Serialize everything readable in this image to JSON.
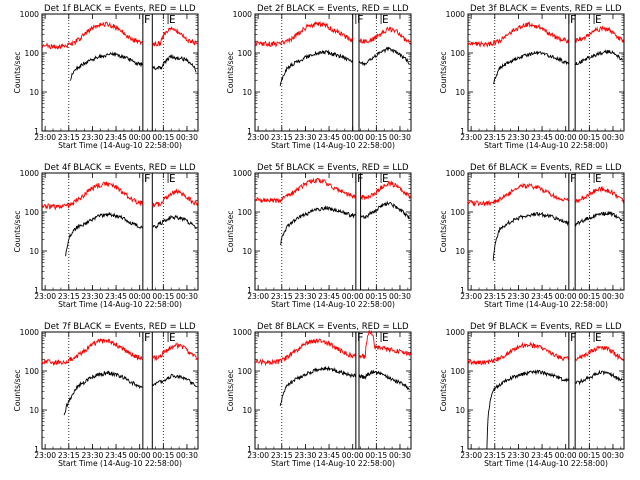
{
  "figure": {
    "subplot_title_template": "Det {det}f BLACK = Events, RED = LLD",
    "xlabel": "Start Time (14-Aug-10 22:58:00)",
    "ylabel": "Counts/sec",
    "x_tick_labels": [
      "23:00",
      "23:15",
      "23:30",
      "23:45",
      "00:00",
      "00:15",
      "00:30"
    ],
    "y_tick_labels": [
      "1",
      "10",
      "100",
      "1000"
    ],
    "series_names": [
      "Events",
      "LLD"
    ],
    "colors": {
      "events": "#000000",
      "lld": "#ff0000",
      "axes": "#000000",
      "background": "#ffffff"
    },
    "flag_labels": {
      "f": "F",
      "e": "E"
    }
  },
  "chart_data": [
    {
      "type": "line",
      "det": 1,
      "title": "Det 1f BLACK = Events, RED = LLD",
      "xlabel": "Start Time (14-Aug-10 22:58:00)",
      "ylabel": "Counts/sec",
      "xlim_min": [
        0,
        99
      ],
      "ylim": [
        1,
        1000
      ],
      "yscale": "log",
      "events_x_min": [
        18,
        20,
        25,
        30,
        38,
        45,
        52,
        60,
        68,
        76,
        78,
        82,
        90,
        95,
        98
      ],
      "events": [
        18,
        35,
        48,
        62,
        85,
        95,
        78,
        55,
        42,
        42,
        60,
        80,
        70,
        55,
        30
      ],
      "lld_x_min": [
        0,
        5,
        10,
        15,
        20,
        25,
        30,
        35,
        40,
        45,
        50,
        55,
        60,
        65,
        70,
        75,
        78,
        83,
        88,
        93,
        99
      ],
      "lld": [
        160,
        150,
        145,
        150,
        180,
        250,
        380,
        520,
        560,
        500,
        380,
        260,
        200,
        180,
        170,
        180,
        320,
        430,
        330,
        210,
        175
      ],
      "gaps_min": [
        [
          64,
          70
        ]
      ],
      "flags": [
        {
          "label": "F",
          "x_min": 64
        },
        {
          "label": "E",
          "x_min": 80
        }
      ]
    },
    {
      "type": "line",
      "det": 2,
      "title": "Det 2f BLACK = Events, RED = LLD",
      "xlabel": "Start Time (14-Aug-10 22:58:00)",
      "ylabel": "Counts/sec",
      "xlim_min": [
        0,
        99
      ],
      "ylim": [
        1,
        1000
      ],
      "yscale": "log",
      "events_x_min": [
        16,
        20,
        25,
        30,
        38,
        45,
        52,
        60,
        70,
        75,
        80,
        85,
        90,
        98
      ],
      "events": [
        15,
        38,
        55,
        70,
        95,
        105,
        88,
        65,
        52,
        75,
        110,
        130,
        105,
        55
      ],
      "lld_x_min": [
        0,
        5,
        10,
        15,
        20,
        25,
        30,
        35,
        40,
        45,
        50,
        55,
        60,
        65,
        70,
        75,
        80,
        85,
        90,
        95,
        99
      ],
      "lld": [
        180,
        175,
        170,
        175,
        200,
        260,
        380,
        520,
        560,
        520,
        380,
        300,
        230,
        210,
        200,
        230,
        320,
        420,
        350,
        220,
        190
      ],
      "gaps_min": [
        [
          62,
          66
        ]
      ],
      "flags": [
        {
          "label": "F",
          "x_min": 64
        },
        {
          "label": "E",
          "x_min": 80
        }
      ]
    },
    {
      "type": "line",
      "det": 3,
      "title": "Det 3f BLACK = Events, RED = LLD",
      "xlabel": "Start Time (14-Aug-10 22:58:00)",
      "ylabel": "Counts/sec",
      "xlim_min": [
        0,
        99
      ],
      "ylim": [
        1,
        1000
      ],
      "yscale": "log",
      "events_x_min": [
        16,
        20,
        25,
        30,
        38,
        45,
        52,
        60,
        66,
        70,
        75,
        80,
        85,
        90,
        98
      ],
      "events": [
        15,
        40,
        55,
        70,
        90,
        100,
        85,
        62,
        50,
        55,
        70,
        85,
        100,
        110,
        65
      ],
      "lld_x_min": [
        0,
        5,
        10,
        15,
        20,
        25,
        30,
        35,
        40,
        45,
        50,
        55,
        60,
        65,
        70,
        75,
        80,
        85,
        90,
        95,
        99
      ],
      "lld": [
        180,
        175,
        170,
        175,
        210,
        280,
        400,
        520,
        540,
        480,
        350,
        260,
        220,
        200,
        210,
        260,
        360,
        430,
        380,
        260,
        190
      ],
      "gaps_min": [
        [
          64,
          68
        ]
      ],
      "flags": [
        {
          "label": "F",
          "x_min": 64
        },
        {
          "label": "E",
          "x_min": 80
        }
      ]
    },
    {
      "type": "line",
      "det": 4,
      "title": "Det 4f BLACK = Events, RED = LLD",
      "xlabel": "Start Time (14-Aug-10 22:58:00)",
      "ylabel": "Counts/sec",
      "xlim_min": [
        0,
        99
      ],
      "ylim": [
        1,
        1000
      ],
      "yscale": "log",
      "events_x_min": [
        15,
        18,
        22,
        28,
        35,
        42,
        50,
        55,
        62,
        68,
        72,
        78,
        82,
        88,
        92,
        98
      ],
      "events": [
        8,
        25,
        40,
        52,
        75,
        90,
        75,
        55,
        42,
        38,
        42,
        60,
        75,
        70,
        60,
        35
      ],
      "lld_x_min": [
        0,
        5,
        10,
        15,
        20,
        25,
        30,
        35,
        40,
        45,
        50,
        55,
        60,
        65,
        70,
        75,
        80,
        85,
        90,
        95,
        99
      ],
      "lld": [
        150,
        140,
        135,
        140,
        170,
        240,
        360,
        480,
        520,
        470,
        350,
        240,
        180,
        160,
        150,
        160,
        260,
        340,
        280,
        190,
        160
      ],
      "gaps_min": [
        [
          64,
          70
        ]
      ],
      "flags": [
        {
          "label": "F",
          "x_min": 64
        },
        {
          "label": "E",
          "x_min": 80
        }
      ]
    },
    {
      "type": "line",
      "det": 5,
      "title": "Det 5f BLACK = Events, RED = LLD",
      "xlabel": "Start Time (14-Aug-10 22:58:00)",
      "ylabel": "Counts/sec",
      "xlim_min": [
        0,
        99
      ],
      "ylim": [
        1,
        1000
      ],
      "yscale": "log",
      "events_x_min": [
        16,
        20,
        25,
        30,
        38,
        45,
        52,
        60,
        70,
        75,
        80,
        85,
        90,
        98
      ],
      "events": [
        14,
        40,
        60,
        80,
        110,
        130,
        110,
        85,
        75,
        100,
        140,
        170,
        130,
        70
      ],
      "lld_x_min": [
        0,
        5,
        10,
        15,
        20,
        25,
        30,
        35,
        40,
        45,
        50,
        55,
        60,
        65,
        70,
        75,
        80,
        85,
        90,
        95,
        99
      ],
      "lld": [
        210,
        200,
        195,
        200,
        250,
        330,
        460,
        620,
        650,
        580,
        430,
        330,
        270,
        240,
        240,
        280,
        420,
        560,
        460,
        300,
        230
      ],
      "gaps_min": [
        [
          64,
          67
        ]
      ],
      "flags": [
        {
          "label": "F",
          "x_min": 64
        },
        {
          "label": "E",
          "x_min": 80
        }
      ]
    },
    {
      "type": "line",
      "det": 6,
      "title": "Det 6f BLACK = Events, RED = LLD",
      "xlabel": "Start Time (14-Aug-10 22:58:00)",
      "ylabel": "Counts/sec",
      "xlim_min": [
        0,
        99
      ],
      "ylim": [
        1,
        1000
      ],
      "yscale": "log",
      "events_x_min": [
        16,
        20,
        25,
        30,
        38,
        45,
        52,
        60,
        66,
        70,
        75,
        80,
        85,
        90,
        98
      ],
      "events": [
        6,
        35,
        50,
        65,
        85,
        90,
        78,
        60,
        48,
        52,
        65,
        80,
        90,
        95,
        60
      ],
      "lld_x_min": [
        0,
        5,
        10,
        15,
        20,
        25,
        30,
        35,
        40,
        45,
        50,
        55,
        60,
        65,
        70,
        75,
        80,
        85,
        90,
        95,
        99
      ],
      "lld": [
        180,
        170,
        165,
        170,
        210,
        280,
        380,
        460,
        470,
        420,
        320,
        250,
        210,
        190,
        200,
        250,
        340,
        400,
        350,
        240,
        180
      ],
      "gaps_min": [
        [
          64,
          68
        ]
      ],
      "flags": [
        {
          "label": "F",
          "x_min": 64
        },
        {
          "label": "E",
          "x_min": 80
        }
      ]
    },
    {
      "type": "line",
      "det": 7,
      "title": "Det 7f BLACK = Events, RED = LLD",
      "xlabel": "Start Time (14-Aug-10 22:58:00)",
      "ylabel": "Counts/sec",
      "xlim_min": [
        0,
        99
      ],
      "ylim": [
        1,
        1000
      ],
      "yscale": "log",
      "events_x_min": [
        14,
        18,
        22,
        28,
        35,
        42,
        50,
        55,
        62,
        68,
        72,
        78,
        82,
        88,
        92,
        98
      ],
      "events": [
        7,
        20,
        38,
        55,
        80,
        90,
        75,
        55,
        40,
        38,
        45,
        60,
        75,
        70,
        60,
        40
      ],
      "lld_x_min": [
        0,
        5,
        10,
        15,
        20,
        25,
        30,
        35,
        40,
        45,
        50,
        55,
        60,
        65,
        70,
        75,
        80,
        85,
        90,
        95,
        99
      ],
      "lld": [
        180,
        170,
        165,
        175,
        210,
        290,
        420,
        560,
        600,
        540,
        400,
        290,
        230,
        210,
        210,
        240,
        360,
        470,
        400,
        260,
        200
      ],
      "gaps_min": [
        [
          64,
          70
        ]
      ],
      "flags": [
        {
          "label": "F",
          "x_min": 64
        },
        {
          "label": "E",
          "x_min": 80
        }
      ]
    },
    {
      "type": "line",
      "det": 8,
      "title": "Det 8f BLACK = Events, RED = LLD",
      "xlabel": "Start Time (14-Aug-10 22:58:00)",
      "ylabel": "Counts/sec",
      "xlim_min": [
        0,
        99
      ],
      "ylim": [
        1,
        1000
      ],
      "yscale": "log",
      "events_x_min": [
        16,
        20,
        25,
        30,
        38,
        45,
        52,
        60,
        70,
        74,
        78,
        84,
        90,
        98
      ],
      "events": [
        12,
        40,
        58,
        75,
        105,
        120,
        100,
        78,
        70,
        95,
        90,
        70,
        55,
        35
      ],
      "lld_x_min": [
        0,
        5,
        10,
        15,
        20,
        25,
        30,
        35,
        40,
        45,
        50,
        55,
        60,
        65,
        70,
        72,
        74,
        76,
        80,
        85,
        90,
        95,
        99
      ],
      "lld": [
        180,
        170,
        165,
        175,
        220,
        300,
        430,
        580,
        620,
        560,
        420,
        320,
        260,
        230,
        240,
        1000,
        1000,
        420,
        380,
        360,
        330,
        300,
        280
      ],
      "gaps_min": [
        [
          64,
          66
        ]
      ],
      "flags": [
        {
          "label": "F",
          "x_min": 64
        },
        {
          "label": "E",
          "x_min": 80
        }
      ]
    },
    {
      "type": "line",
      "det": 9,
      "title": "Det 9f BLACK = Events, RED = LLD",
      "xlabel": "Start Time (14-Aug-10 22:58:00)",
      "ylabel": "Counts/sec",
      "xlim_min": [
        0,
        99
      ],
      "ylim": [
        1,
        1000
      ],
      "yscale": "log",
      "events_x_min": [
        12,
        16,
        20,
        25,
        30,
        38,
        45,
        52,
        60,
        70,
        75,
        80,
        85,
        90,
        98
      ],
      "events": [
        1,
        30,
        45,
        60,
        72,
        90,
        95,
        80,
        62,
        50,
        62,
        78,
        95,
        85,
        55
      ],
      "lld_x_min": [
        0,
        5,
        10,
        15,
        20,
        25,
        30,
        35,
        40,
        45,
        50,
        55,
        60,
        65,
        70,
        75,
        80,
        85,
        90,
        95,
        99
      ],
      "lld": [
        180,
        170,
        165,
        175,
        210,
        280,
        380,
        450,
        460,
        410,
        320,
        250,
        210,
        200,
        210,
        260,
        350,
        420,
        350,
        240,
        190
      ],
      "gaps_min": [
        [
          64,
          68
        ]
      ],
      "flags": [
        {
          "label": "F",
          "x_min": 64
        },
        {
          "label": "E",
          "x_min": 80
        }
      ]
    }
  ]
}
